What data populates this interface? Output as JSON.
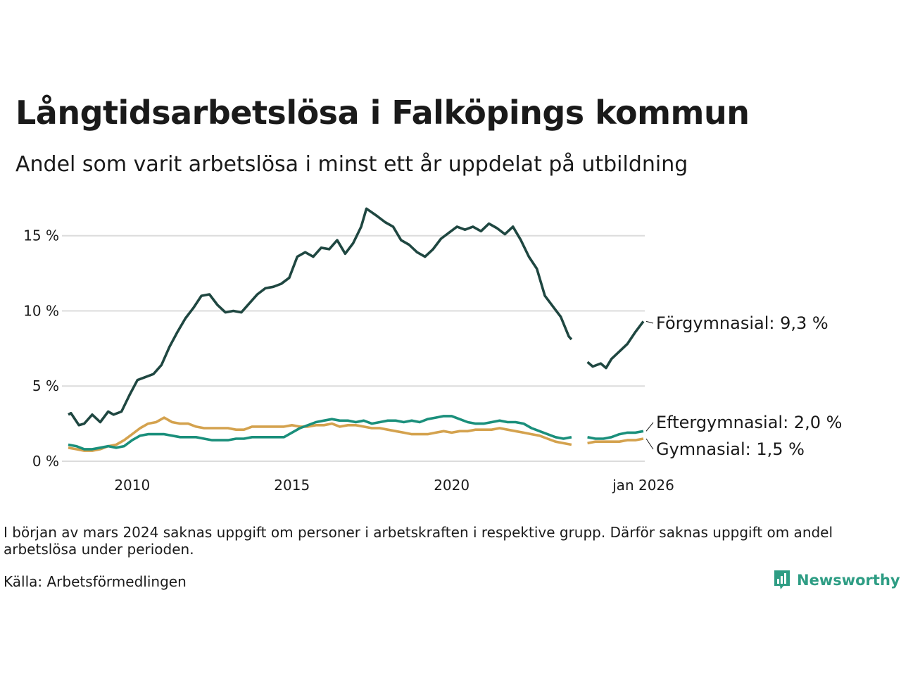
{
  "title": "Långtidsarbetslösa i Falköpings kommun",
  "subtitle": "Andel som varit arbetslösa i minst ett år uppdelat på utbildning",
  "note": "I början av mars 2024 saknas uppgift om personer i arbetskraften i respektive grupp. Därför saknas uppgift om andel arbetslösa under perioden.",
  "source": "Källa: Arbetsförmedlingen",
  "brand": {
    "name": "Newsworthy",
    "icon": "newsworthy-logo-icon",
    "color": "#2e9d84"
  },
  "chart_data": {
    "type": "line",
    "x_range": [
      "2008-01",
      "2026-01"
    ],
    "ylim": [
      0,
      17
    ],
    "y_ticks": [
      {
        "value": 0,
        "label": "0 %"
      },
      {
        "value": 5,
        "label": "5 %"
      },
      {
        "value": 10,
        "label": "10 %"
      },
      {
        "value": 15,
        "label": "15 %"
      }
    ],
    "x_ticks": [
      {
        "value": "2010-01",
        "label": "2010"
      },
      {
        "value": "2015-01",
        "label": "2015"
      },
      {
        "value": "2020-01",
        "label": "2020"
      },
      {
        "value": "2026-01",
        "label": "jan 2026"
      }
    ],
    "grid": "horizontal",
    "series": [
      {
        "name": "Förgymnasial",
        "label": "Förgymnasial: 9,3 %",
        "color": "#1f4741",
        "points": [
          [
            "2008-01",
            3.1
          ],
          [
            "2008-02",
            3.2
          ],
          [
            "2008-05",
            2.4
          ],
          [
            "2008-07",
            2.5
          ],
          [
            "2008-10",
            3.1
          ],
          [
            "2009-01",
            2.6
          ],
          [
            "2009-04",
            3.3
          ],
          [
            "2009-06",
            3.1
          ],
          [
            "2009-09",
            3.3
          ],
          [
            "2009-12",
            4.4
          ],
          [
            "2010-03",
            5.4
          ],
          [
            "2010-06",
            5.6
          ],
          [
            "2010-09",
            5.8
          ],
          [
            "2010-12",
            6.4
          ],
          [
            "2011-03",
            7.6
          ],
          [
            "2011-06",
            8.6
          ],
          [
            "2011-09",
            9.5
          ],
          [
            "2011-12",
            10.2
          ],
          [
            "2012-03",
            11.0
          ],
          [
            "2012-06",
            11.1
          ],
          [
            "2012-09",
            10.4
          ],
          [
            "2012-12",
            9.9
          ],
          [
            "2013-03",
            10.0
          ],
          [
            "2013-06",
            9.9
          ],
          [
            "2013-09",
            10.5
          ],
          [
            "2013-12",
            11.1
          ],
          [
            "2014-03",
            11.5
          ],
          [
            "2014-06",
            11.6
          ],
          [
            "2014-09",
            11.8
          ],
          [
            "2014-12",
            12.2
          ],
          [
            "2015-03",
            13.6
          ],
          [
            "2015-06",
            13.9
          ],
          [
            "2015-09",
            13.6
          ],
          [
            "2015-12",
            14.2
          ],
          [
            "2016-03",
            14.1
          ],
          [
            "2016-06",
            14.7
          ],
          [
            "2016-09",
            13.8
          ],
          [
            "2016-12",
            14.5
          ],
          [
            "2017-03",
            15.6
          ],
          [
            "2017-05",
            16.8
          ],
          [
            "2017-09",
            16.3
          ],
          [
            "2017-12",
            15.9
          ],
          [
            "2018-03",
            15.6
          ],
          [
            "2018-06",
            14.7
          ],
          [
            "2018-09",
            14.4
          ],
          [
            "2018-12",
            13.9
          ],
          [
            "2019-03",
            13.6
          ],
          [
            "2019-06",
            14.1
          ],
          [
            "2019-09",
            14.8
          ],
          [
            "2019-12",
            15.2
          ],
          [
            "2020-03",
            15.6
          ],
          [
            "2020-06",
            15.4
          ],
          [
            "2020-09",
            15.6
          ],
          [
            "2020-12",
            15.3
          ],
          [
            "2021-03",
            15.8
          ],
          [
            "2021-06",
            15.5
          ],
          [
            "2021-09",
            15.1
          ],
          [
            "2021-12",
            15.6
          ],
          [
            "2022-03",
            14.7
          ],
          [
            "2022-06",
            13.6
          ],
          [
            "2022-09",
            12.8
          ],
          [
            "2022-12",
            11.0
          ],
          [
            "2023-03",
            10.3
          ],
          [
            "2023-06",
            9.6
          ],
          [
            "2023-09",
            8.3
          ],
          [
            "2023-10",
            8.1
          ],
          null,
          [
            "2024-04",
            6.6
          ],
          [
            "2024-06",
            6.3
          ],
          [
            "2024-09",
            6.5
          ],
          [
            "2024-11",
            6.2
          ],
          [
            "2025-01",
            6.8
          ],
          [
            "2025-04",
            7.3
          ],
          [
            "2025-07",
            7.8
          ],
          [
            "2025-10",
            8.6
          ],
          [
            "2026-01",
            9.3
          ]
        ]
      },
      {
        "name": "Eftergymnasial",
        "label": "Eftergymnasial: 2,0 %",
        "color": "#1a8f7b",
        "points": [
          [
            "2008-01",
            1.1
          ],
          [
            "2008-04",
            1.0
          ],
          [
            "2008-07",
            0.8
          ],
          [
            "2008-10",
            0.8
          ],
          [
            "2009-01",
            0.9
          ],
          [
            "2009-04",
            1.0
          ],
          [
            "2009-07",
            0.9
          ],
          [
            "2009-10",
            1.0
          ],
          [
            "2010-01",
            1.4
          ],
          [
            "2010-04",
            1.7
          ],
          [
            "2010-07",
            1.8
          ],
          [
            "2010-10",
            1.8
          ],
          [
            "2011-01",
            1.8
          ],
          [
            "2011-04",
            1.7
          ],
          [
            "2011-07",
            1.6
          ],
          [
            "2011-10",
            1.6
          ],
          [
            "2012-01",
            1.6
          ],
          [
            "2012-04",
            1.5
          ],
          [
            "2012-07",
            1.4
          ],
          [
            "2012-10",
            1.4
          ],
          [
            "2013-01",
            1.4
          ],
          [
            "2013-04",
            1.5
          ],
          [
            "2013-07",
            1.5
          ],
          [
            "2013-10",
            1.6
          ],
          [
            "2014-01",
            1.6
          ],
          [
            "2014-04",
            1.6
          ],
          [
            "2014-07",
            1.6
          ],
          [
            "2014-10",
            1.6
          ],
          [
            "2015-01",
            1.9
          ],
          [
            "2015-04",
            2.2
          ],
          [
            "2015-07",
            2.4
          ],
          [
            "2015-10",
            2.6
          ],
          [
            "2016-01",
            2.7
          ],
          [
            "2016-04",
            2.8
          ],
          [
            "2016-07",
            2.7
          ],
          [
            "2016-10",
            2.7
          ],
          [
            "2017-01",
            2.6
          ],
          [
            "2017-04",
            2.7
          ],
          [
            "2017-07",
            2.5
          ],
          [
            "2017-10",
            2.6
          ],
          [
            "2018-01",
            2.7
          ],
          [
            "2018-04",
            2.7
          ],
          [
            "2018-07",
            2.6
          ],
          [
            "2018-10",
            2.7
          ],
          [
            "2019-01",
            2.6
          ],
          [
            "2019-04",
            2.8
          ],
          [
            "2019-07",
            2.9
          ],
          [
            "2019-10",
            3.0
          ],
          [
            "2020-01",
            3.0
          ],
          [
            "2020-04",
            2.8
          ],
          [
            "2020-07",
            2.6
          ],
          [
            "2020-10",
            2.5
          ],
          [
            "2021-01",
            2.5
          ],
          [
            "2021-04",
            2.6
          ],
          [
            "2021-07",
            2.7
          ],
          [
            "2021-10",
            2.6
          ],
          [
            "2022-01",
            2.6
          ],
          [
            "2022-04",
            2.5
          ],
          [
            "2022-07",
            2.2
          ],
          [
            "2022-10",
            2.0
          ],
          [
            "2023-01",
            1.8
          ],
          [
            "2023-04",
            1.6
          ],
          [
            "2023-07",
            1.5
          ],
          [
            "2023-10",
            1.6
          ],
          null,
          [
            "2024-04",
            1.6
          ],
          [
            "2024-07",
            1.5
          ],
          [
            "2024-10",
            1.5
          ],
          [
            "2025-01",
            1.6
          ],
          [
            "2025-04",
            1.8
          ],
          [
            "2025-07",
            1.9
          ],
          [
            "2025-10",
            1.9
          ],
          [
            "2026-01",
            2.0
          ]
        ]
      },
      {
        "name": "Gymnasial",
        "label": "Gymnasial: 1,5 %",
        "color": "#d4a24e",
        "points": [
          [
            "2008-01",
            0.9
          ],
          [
            "2008-04",
            0.8
          ],
          [
            "2008-07",
            0.7
          ],
          [
            "2008-10",
            0.7
          ],
          [
            "2009-01",
            0.8
          ],
          [
            "2009-04",
            1.0
          ],
          [
            "2009-07",
            1.1
          ],
          [
            "2009-10",
            1.4
          ],
          [
            "2010-01",
            1.8
          ],
          [
            "2010-04",
            2.2
          ],
          [
            "2010-07",
            2.5
          ],
          [
            "2010-10",
            2.6
          ],
          [
            "2011-01",
            2.9
          ],
          [
            "2011-04",
            2.6
          ],
          [
            "2011-07",
            2.5
          ],
          [
            "2011-10",
            2.5
          ],
          [
            "2012-01",
            2.3
          ],
          [
            "2012-04",
            2.2
          ],
          [
            "2012-07",
            2.2
          ],
          [
            "2012-10",
            2.2
          ],
          [
            "2013-01",
            2.2
          ],
          [
            "2013-04",
            2.1
          ],
          [
            "2013-07",
            2.1
          ],
          [
            "2013-10",
            2.3
          ],
          [
            "2014-01",
            2.3
          ],
          [
            "2014-04",
            2.3
          ],
          [
            "2014-07",
            2.3
          ],
          [
            "2014-10",
            2.3
          ],
          [
            "2015-01",
            2.4
          ],
          [
            "2015-04",
            2.3
          ],
          [
            "2015-07",
            2.3
          ],
          [
            "2015-10",
            2.4
          ],
          [
            "2016-01",
            2.4
          ],
          [
            "2016-04",
            2.5
          ],
          [
            "2016-07",
            2.3
          ],
          [
            "2016-10",
            2.4
          ],
          [
            "2017-01",
            2.4
          ],
          [
            "2017-04",
            2.3
          ],
          [
            "2017-07",
            2.2
          ],
          [
            "2017-10",
            2.2
          ],
          [
            "2018-01",
            2.1
          ],
          [
            "2018-04",
            2.0
          ],
          [
            "2018-07",
            1.9
          ],
          [
            "2018-10",
            1.8
          ],
          [
            "2019-01",
            1.8
          ],
          [
            "2019-04",
            1.8
          ],
          [
            "2019-07",
            1.9
          ],
          [
            "2019-10",
            2.0
          ],
          [
            "2020-01",
            1.9
          ],
          [
            "2020-04",
            2.0
          ],
          [
            "2020-07",
            2.0
          ],
          [
            "2020-10",
            2.1
          ],
          [
            "2021-01",
            2.1
          ],
          [
            "2021-04",
            2.1
          ],
          [
            "2021-07",
            2.2
          ],
          [
            "2021-10",
            2.1
          ],
          [
            "2022-01",
            2.0
          ],
          [
            "2022-04",
            1.9
          ],
          [
            "2022-07",
            1.8
          ],
          [
            "2022-10",
            1.7
          ],
          [
            "2023-01",
            1.5
          ],
          [
            "2023-04",
            1.3
          ],
          [
            "2023-07",
            1.2
          ],
          [
            "2023-10",
            1.1
          ],
          null,
          [
            "2024-04",
            1.2
          ],
          [
            "2024-07",
            1.3
          ],
          [
            "2024-10",
            1.3
          ],
          [
            "2025-01",
            1.3
          ],
          [
            "2025-04",
            1.3
          ],
          [
            "2025-07",
            1.4
          ],
          [
            "2025-10",
            1.4
          ],
          [
            "2026-01",
            1.5
          ]
        ]
      }
    ]
  }
}
